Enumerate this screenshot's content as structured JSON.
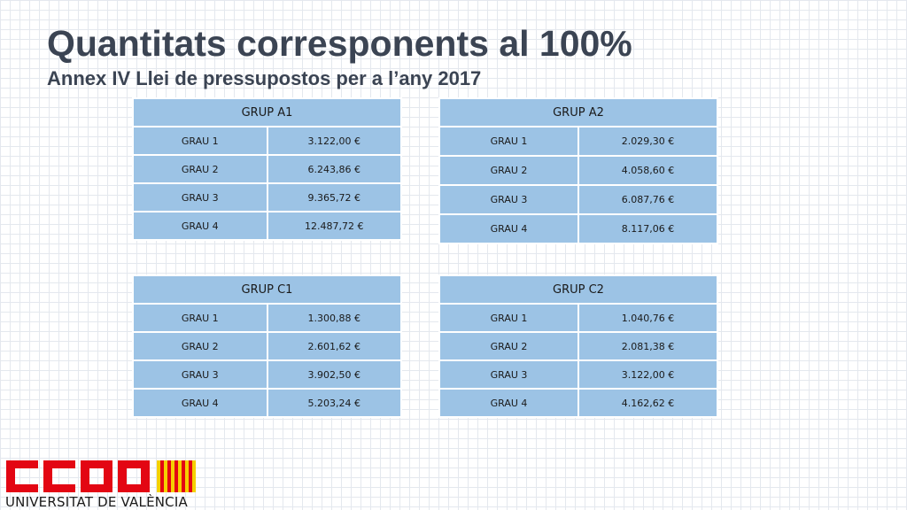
{
  "header": {
    "title": "Quantitats corresponents al 100%",
    "subtitle": "Annex IV Llei de pressupostos per a l’any 2017"
  },
  "tables": [
    {
      "title": "GRUP A1",
      "rows": [
        {
          "grau": "GRAU 1",
          "amount": "3.122,00 €"
        },
        {
          "grau": "GRAU 2",
          "amount": "6.243,86 €"
        },
        {
          "grau": "GRAU 3",
          "amount": "9.365,72 €"
        },
        {
          "grau": "GRAU 4",
          "amount": "12.487,72 €"
        }
      ]
    },
    {
      "title": "GRUP A2",
      "rows": [
        {
          "grau": "GRAU 1",
          "amount": "2.029,30 €"
        },
        {
          "grau": "GRAU 2",
          "amount": "4.058,60 €"
        },
        {
          "grau": "GRAU 3",
          "amount": "6.087,76 €"
        },
        {
          "grau": "GRAU 4",
          "amount": "8.117,06 €"
        }
      ]
    },
    {
      "title": "GRUP C1",
      "rows": [
        {
          "grau": "GRAU 1",
          "amount": "1.300,88 €"
        },
        {
          "grau": "GRAU 2",
          "amount": "2.601,62 €"
        },
        {
          "grau": "GRAU 3",
          "amount": "3.902,50 €"
        },
        {
          "grau": "GRAU 4",
          "amount": "5.203,24 €"
        }
      ]
    },
    {
      "title": "GRUP C2",
      "rows": [
        {
          "grau": "GRAU 1",
          "amount": "1.040,76 €"
        },
        {
          "grau": "GRAU 2",
          "amount": "2.081,38 €"
        },
        {
          "grau": "GRAU 3",
          "amount": "3.122,00 €"
        },
        {
          "grau": "GRAU 4",
          "amount": "4.162,62 €"
        }
      ]
    }
  ],
  "logo": {
    "wordmark": "CCOO",
    "caption": "UNIVERSITAT DE VALÈNCIA",
    "brand_color": "#e30613",
    "flag_yellow": "#f5d000"
  },
  "colors": {
    "title_text": "#3b4453",
    "table_fill": "#9cc3e5"
  }
}
